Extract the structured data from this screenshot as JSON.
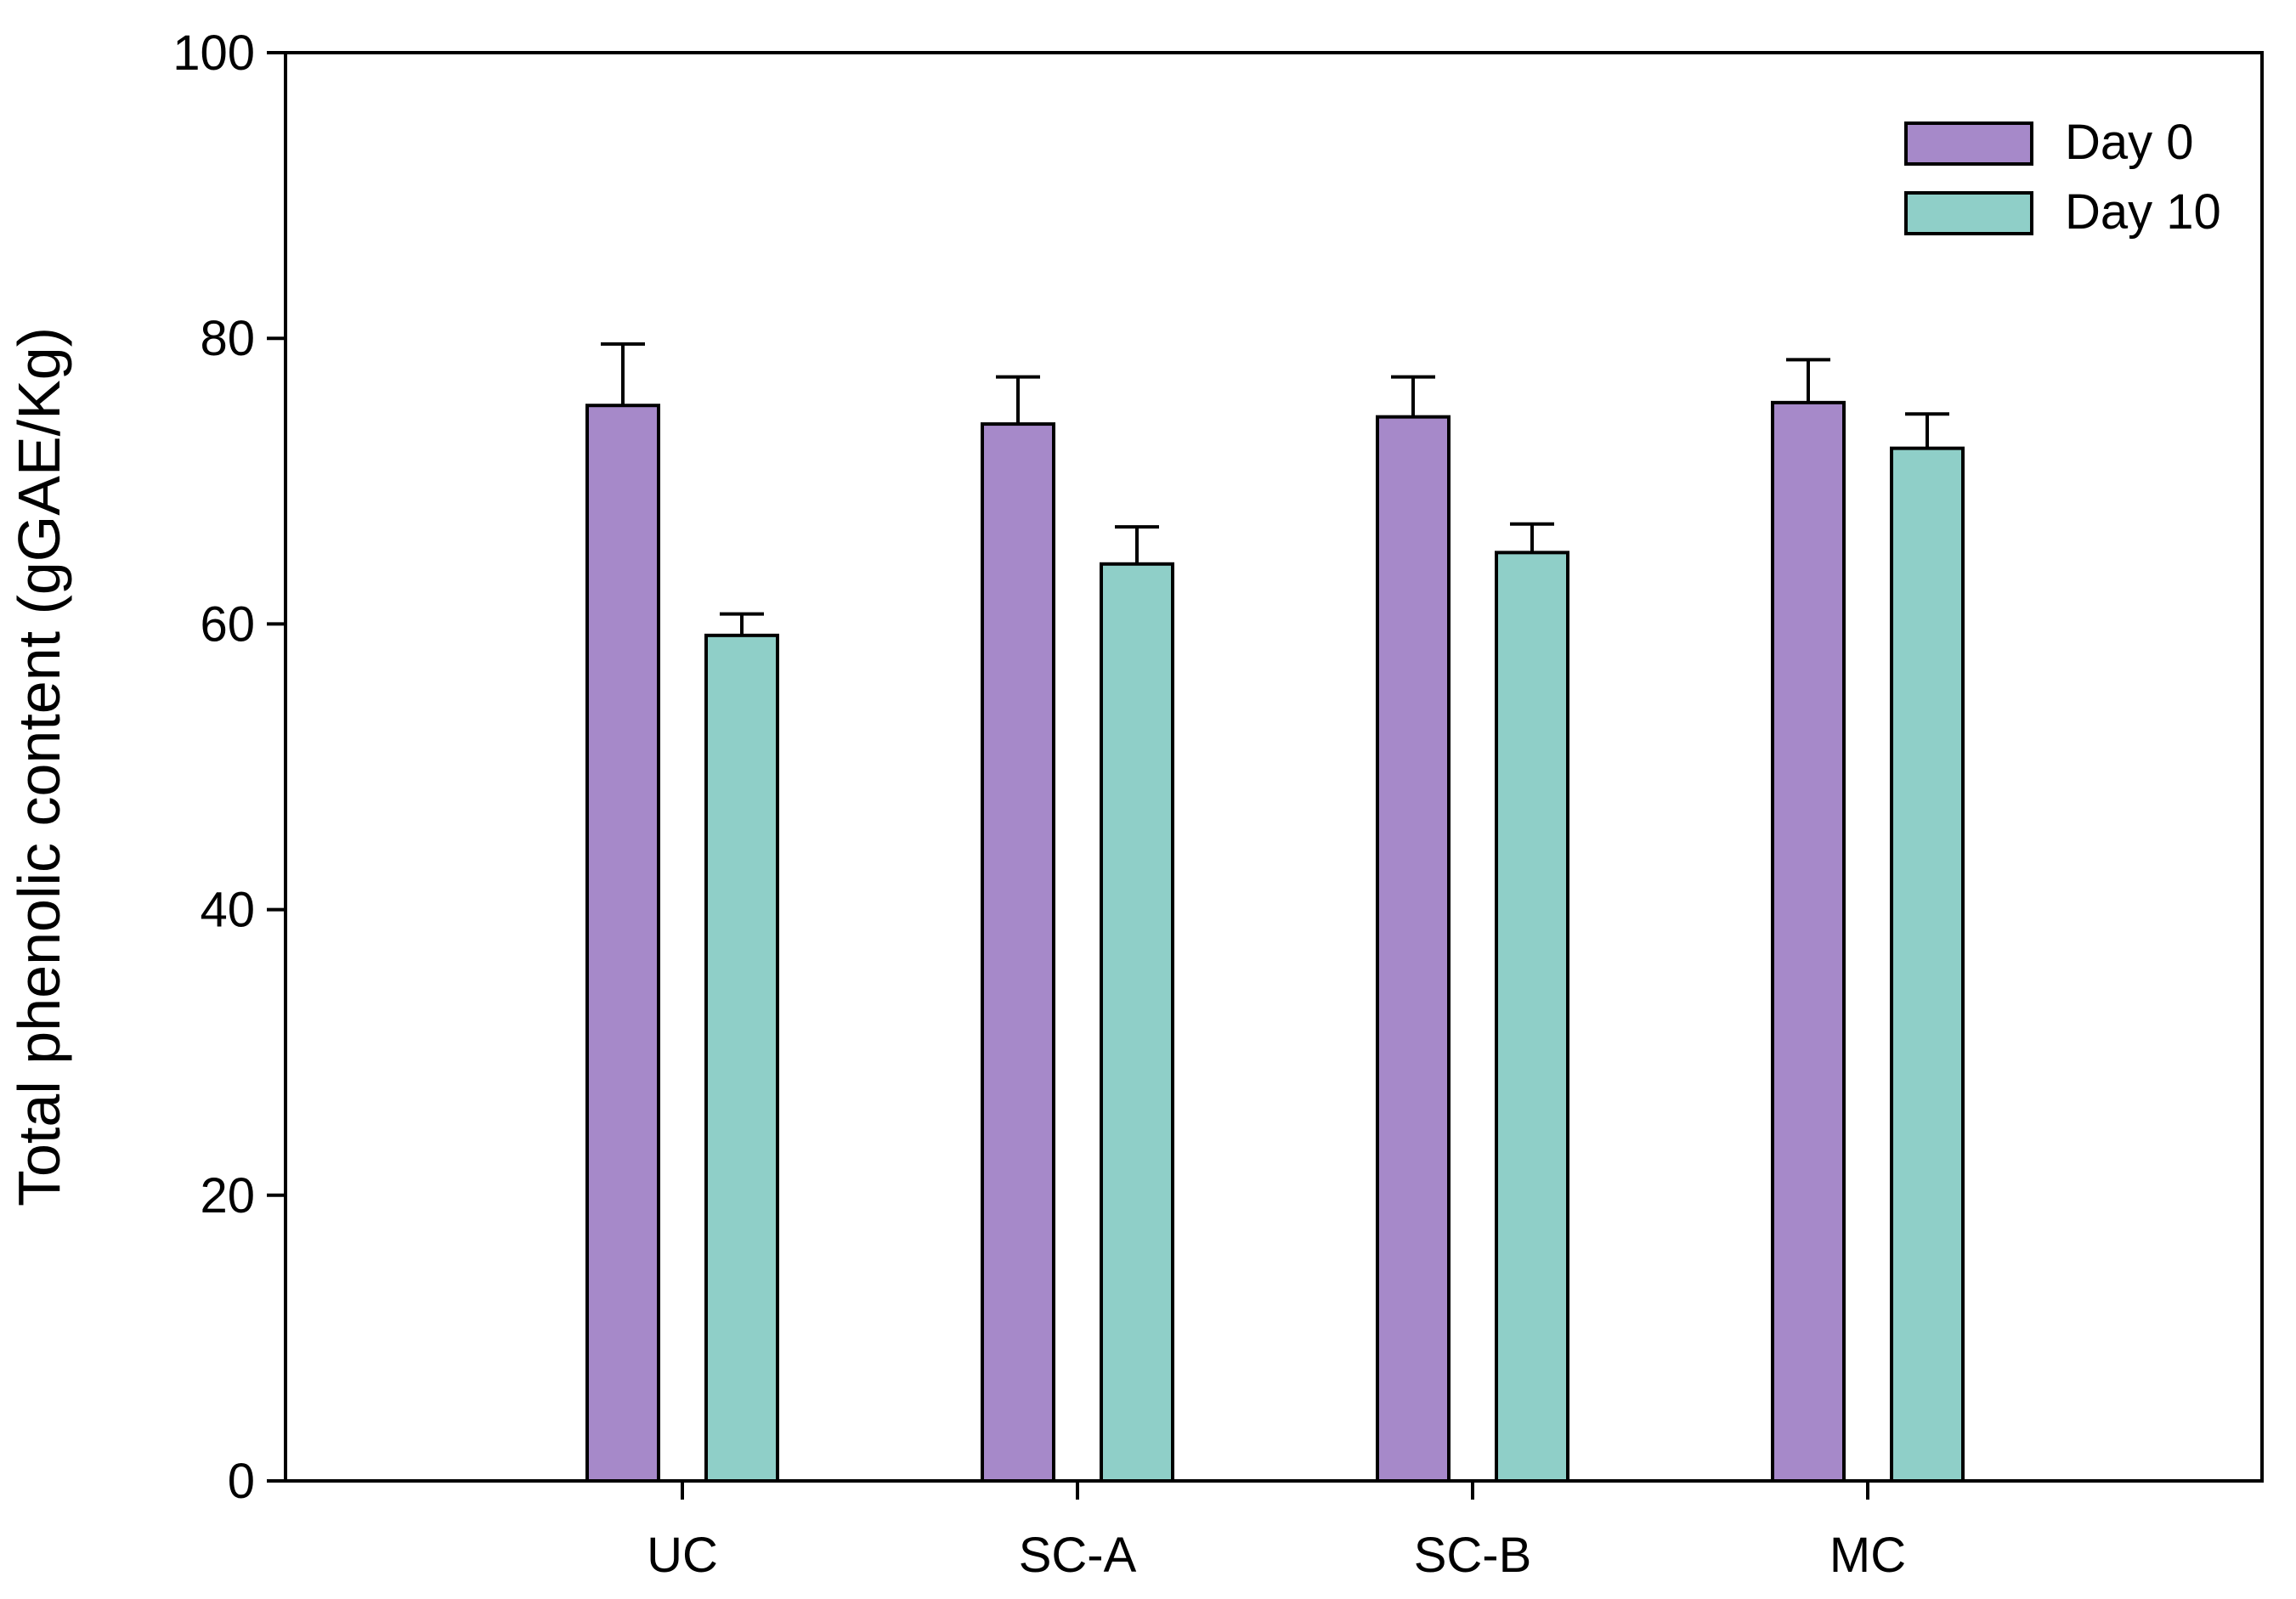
{
  "chart_data": {
    "type": "bar",
    "title": "",
    "xlabel": "",
    "ylabel": "Total phenolic content (gGAE/Kg)",
    "ylim": [
      0,
      100
    ],
    "yticks": [
      0,
      20,
      40,
      60,
      80,
      100
    ],
    "categories": [
      "UC",
      "SC-A",
      "SC-B",
      "MC"
    ],
    "series": [
      {
        "name": "Day 0",
        "color": "#a689c9",
        "values": [
          75.3,
          74.0,
          74.5,
          75.5
        ],
        "errors": [
          4.3,
          3.3,
          2.8,
          3.0
        ]
      },
      {
        "name": "Day 10",
        "color": "#8fcfc8",
        "values": [
          59.2,
          64.2,
          65.0,
          72.3
        ],
        "errors": [
          1.5,
          2.6,
          2.0,
          2.4
        ]
      }
    ],
    "grid": false,
    "legend_position": "top-right",
    "error_bars": "upper"
  }
}
